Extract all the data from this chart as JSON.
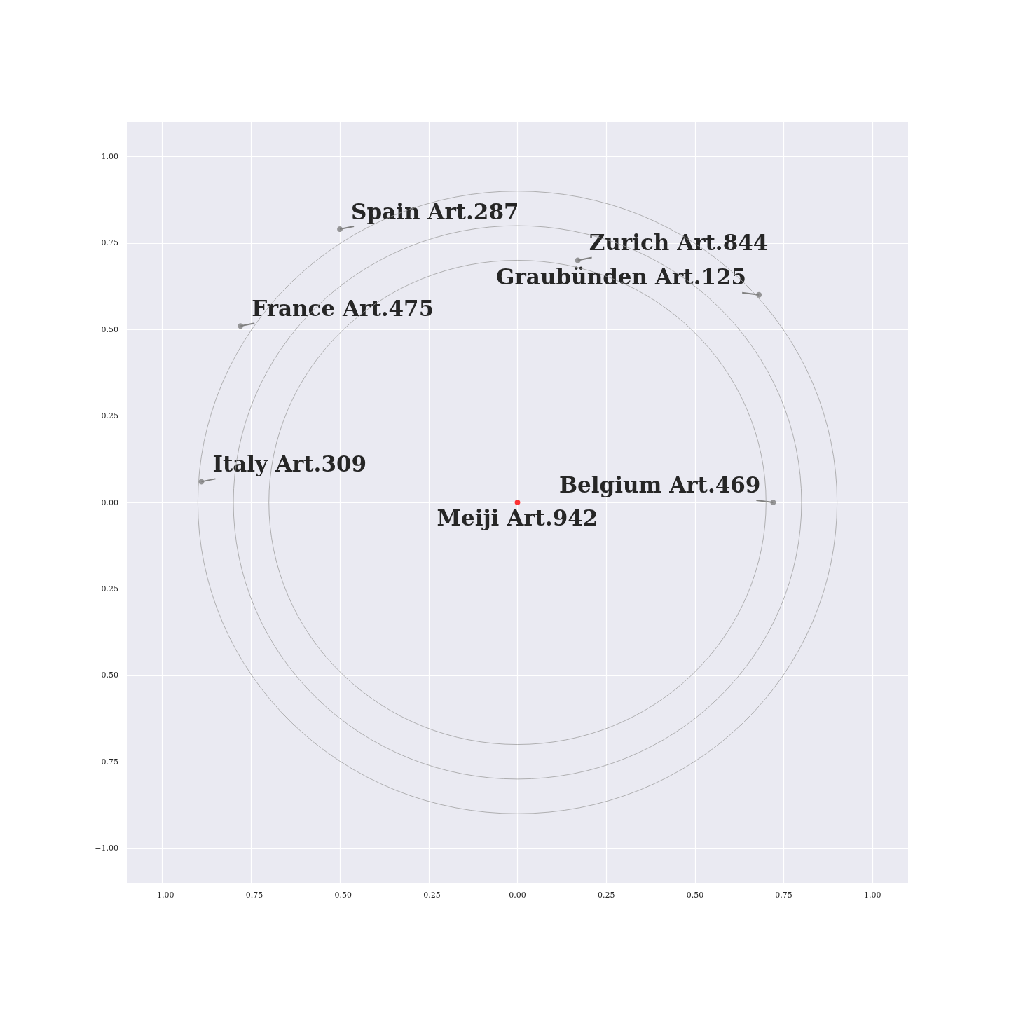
{
  "chart_data": {
    "type": "scatter",
    "grid": true,
    "marker": "circle",
    "xlim": [
      -1.1,
      1.1
    ],
    "ylim": [
      -1.1,
      1.1
    ],
    "xticks": [
      {
        "value": -1,
        "label": "−1.00"
      },
      {
        "value": -0.75,
        "label": "−0.75"
      },
      {
        "value": -0.5,
        "label": "−0.50"
      },
      {
        "value": -0.25,
        "label": "−0.25"
      },
      {
        "value": 0,
        "label": "0.00"
      },
      {
        "value": 0.25,
        "label": "0.25"
      },
      {
        "value": 0.5,
        "label": "0.50"
      },
      {
        "value": 0.75,
        "label": "0.75"
      },
      {
        "value": 1,
        "label": "1.00"
      }
    ],
    "yticks": [
      {
        "value": -1,
        "label": "−1.00"
      },
      {
        "value": -0.75,
        "label": "−0.75"
      },
      {
        "value": -0.5,
        "label": "−0.50"
      },
      {
        "value": -0.25,
        "label": "−0.25"
      },
      {
        "value": 0,
        "label": "0.00"
      },
      {
        "value": 0.25,
        "label": "0.25"
      },
      {
        "value": 0.5,
        "label": "0.50"
      },
      {
        "value": 0.75,
        "label": "0.75"
      },
      {
        "value": 1,
        "label": "1.00"
      }
    ],
    "series": [
      {
        "x": [
          -0.5,
          0.17,
          0.68,
          -0.78,
          -0.89,
          0.72,
          0
        ],
        "values": [
          0.79,
          0.7,
          0.6,
          0.51,
          0.06,
          0,
          0
        ],
        "colors": [
          "#808080",
          "#808080",
          "#808080",
          "#808080",
          "#808080",
          "#808080",
          "#ff0000"
        ]
      }
    ],
    "annotations": [
      {
        "text": "Spain Art.287",
        "x": -0.5,
        "y": 0.79
      },
      {
        "text": "Zurich Art.844",
        "x": 0.17,
        "y": 0.7
      },
      {
        "text": "Graubünden Art.125",
        "x": 0.68,
        "y": 0.6
      },
      {
        "text": "France Art.475",
        "x": -0.78,
        "y": 0.51
      },
      {
        "text": "Italy Art.309",
        "x": -0.89,
        "y": 0.06
      },
      {
        "text": "Belgium Art.469",
        "x": 0.72,
        "y": 0
      },
      {
        "text": "Meiji Art.942",
        "x": 0,
        "y": 0
      }
    ]
  }
}
